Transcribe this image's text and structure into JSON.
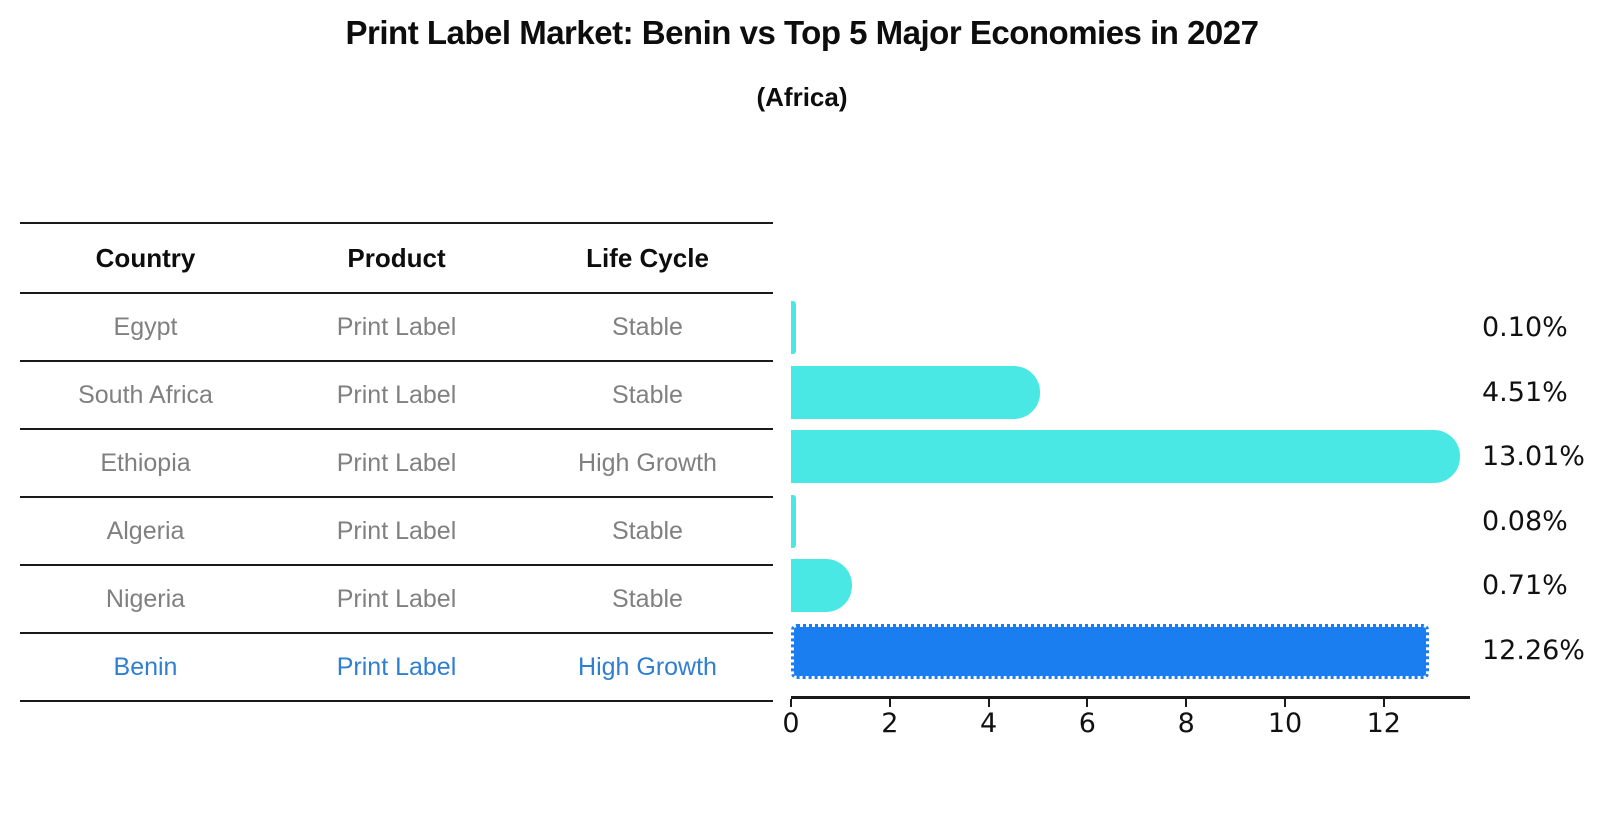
{
  "title": "Print Label Market: Benin vs Top 5 Major Economies in 2027",
  "subtitle": "(Africa)",
  "table": {
    "headers": [
      "Country",
      "Product",
      "Life Cycle"
    ],
    "rows": [
      {
        "country": "Egypt",
        "product": "Print Label",
        "life_cycle": "Stable",
        "highlight": false
      },
      {
        "country": "South Africa",
        "product": "Print Label",
        "life_cycle": "Stable",
        "highlight": false
      },
      {
        "country": "Ethiopia",
        "product": "Print Label",
        "life_cycle": "High Growth",
        "highlight": false
      },
      {
        "country": "Algeria",
        "product": "Print Label",
        "life_cycle": "Stable",
        "highlight": false
      },
      {
        "country": "Nigeria",
        "product": "Print Label",
        "life_cycle": "Stable",
        "highlight": false
      },
      {
        "country": "Benin",
        "product": "Print Label",
        "life_cycle": "High Growth",
        "highlight": true
      }
    ]
  },
  "chart_data": {
    "type": "bar",
    "orientation": "horizontal",
    "title": "Print Label Market: Benin vs Top 5 Major Economies in 2027",
    "subtitle": "(Africa)",
    "categories": [
      "Egypt",
      "South Africa",
      "Ethiopia",
      "Algeria",
      "Nigeria",
      "Benin"
    ],
    "values": [
      0.1,
      4.51,
      13.01,
      0.08,
      0.71,
      12.26
    ],
    "value_labels": [
      "0.10%",
      "4.51%",
      "13.01%",
      "0.08%",
      "0.71%",
      "12.26%"
    ],
    "x_ticks": [
      "0",
      "2",
      "4",
      "6",
      "8",
      "10",
      "12"
    ],
    "xlim": [
      0,
      13.7
    ],
    "grid": false,
    "legend": "none",
    "bar_color": "#4AE8E4",
    "highlight_bar_color": "#1B7EF0",
    "highlight_index": 5,
    "highlight_text_color": "#2E7FD2",
    "muted_text_color": "#808080"
  }
}
